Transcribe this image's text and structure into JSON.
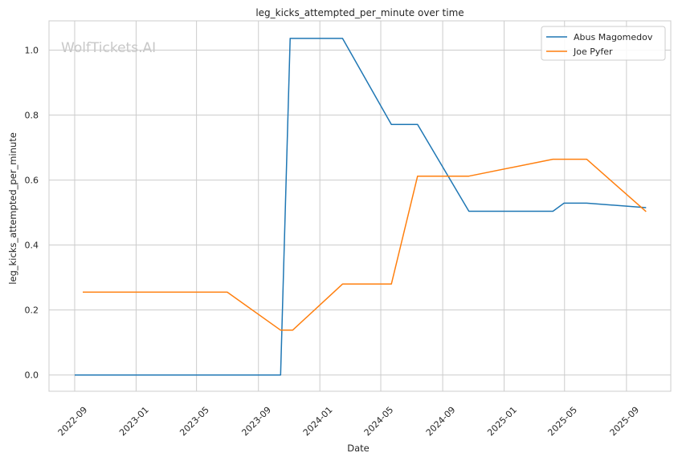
{
  "chart_data": {
    "type": "line",
    "title": "leg_kicks_attempted_per_minute over time",
    "xlabel": "Date",
    "ylabel": "leg_kicks_attempted_per_minute",
    "watermark": "WolfTickets.AI",
    "ylim": [
      -0.05,
      1.09
    ],
    "xlim": [
      "2022-07-12",
      "2025-11-28"
    ],
    "x_ticks": [
      "2022-09",
      "2023-01",
      "2023-05",
      "2023-09",
      "2024-01",
      "2024-05",
      "2024-09",
      "2025-01",
      "2025-05",
      "2025-09"
    ],
    "y_ticks": [
      "0.0",
      "0.2",
      "0.4",
      "0.6",
      "0.8",
      "1.0"
    ],
    "grid": true,
    "legend_position": "top-right",
    "series": [
      {
        "name": "Abus Magomedov",
        "color": "#1f77b4",
        "points": [
          [
            "2022-09-01",
            0.0
          ],
          [
            "2023-10-15",
            0.0
          ],
          [
            "2023-11-03",
            1.036
          ],
          [
            "2024-02-15",
            1.036
          ],
          [
            "2024-05-22",
            0.771
          ],
          [
            "2024-07-13",
            0.771
          ],
          [
            "2024-10-23",
            0.504
          ],
          [
            "2025-04-08",
            0.504
          ],
          [
            "2025-04-30",
            0.529
          ],
          [
            "2025-06-14",
            0.529
          ],
          [
            "2025-10-10",
            0.515
          ]
        ]
      },
      {
        "name": "Joe Pyfer",
        "color": "#ff7f0e",
        "points": [
          [
            "2022-09-17",
            0.255
          ],
          [
            "2023-07-01",
            0.255
          ],
          [
            "2023-10-15",
            0.138
          ],
          [
            "2023-11-08",
            0.138
          ],
          [
            "2024-02-15",
            0.28
          ],
          [
            "2024-05-22",
            0.28
          ],
          [
            "2024-07-13",
            0.612
          ],
          [
            "2024-10-23",
            0.612
          ],
          [
            "2025-04-08",
            0.664
          ],
          [
            "2025-06-14",
            0.664
          ],
          [
            "2025-10-10",
            0.503
          ]
        ]
      }
    ]
  }
}
